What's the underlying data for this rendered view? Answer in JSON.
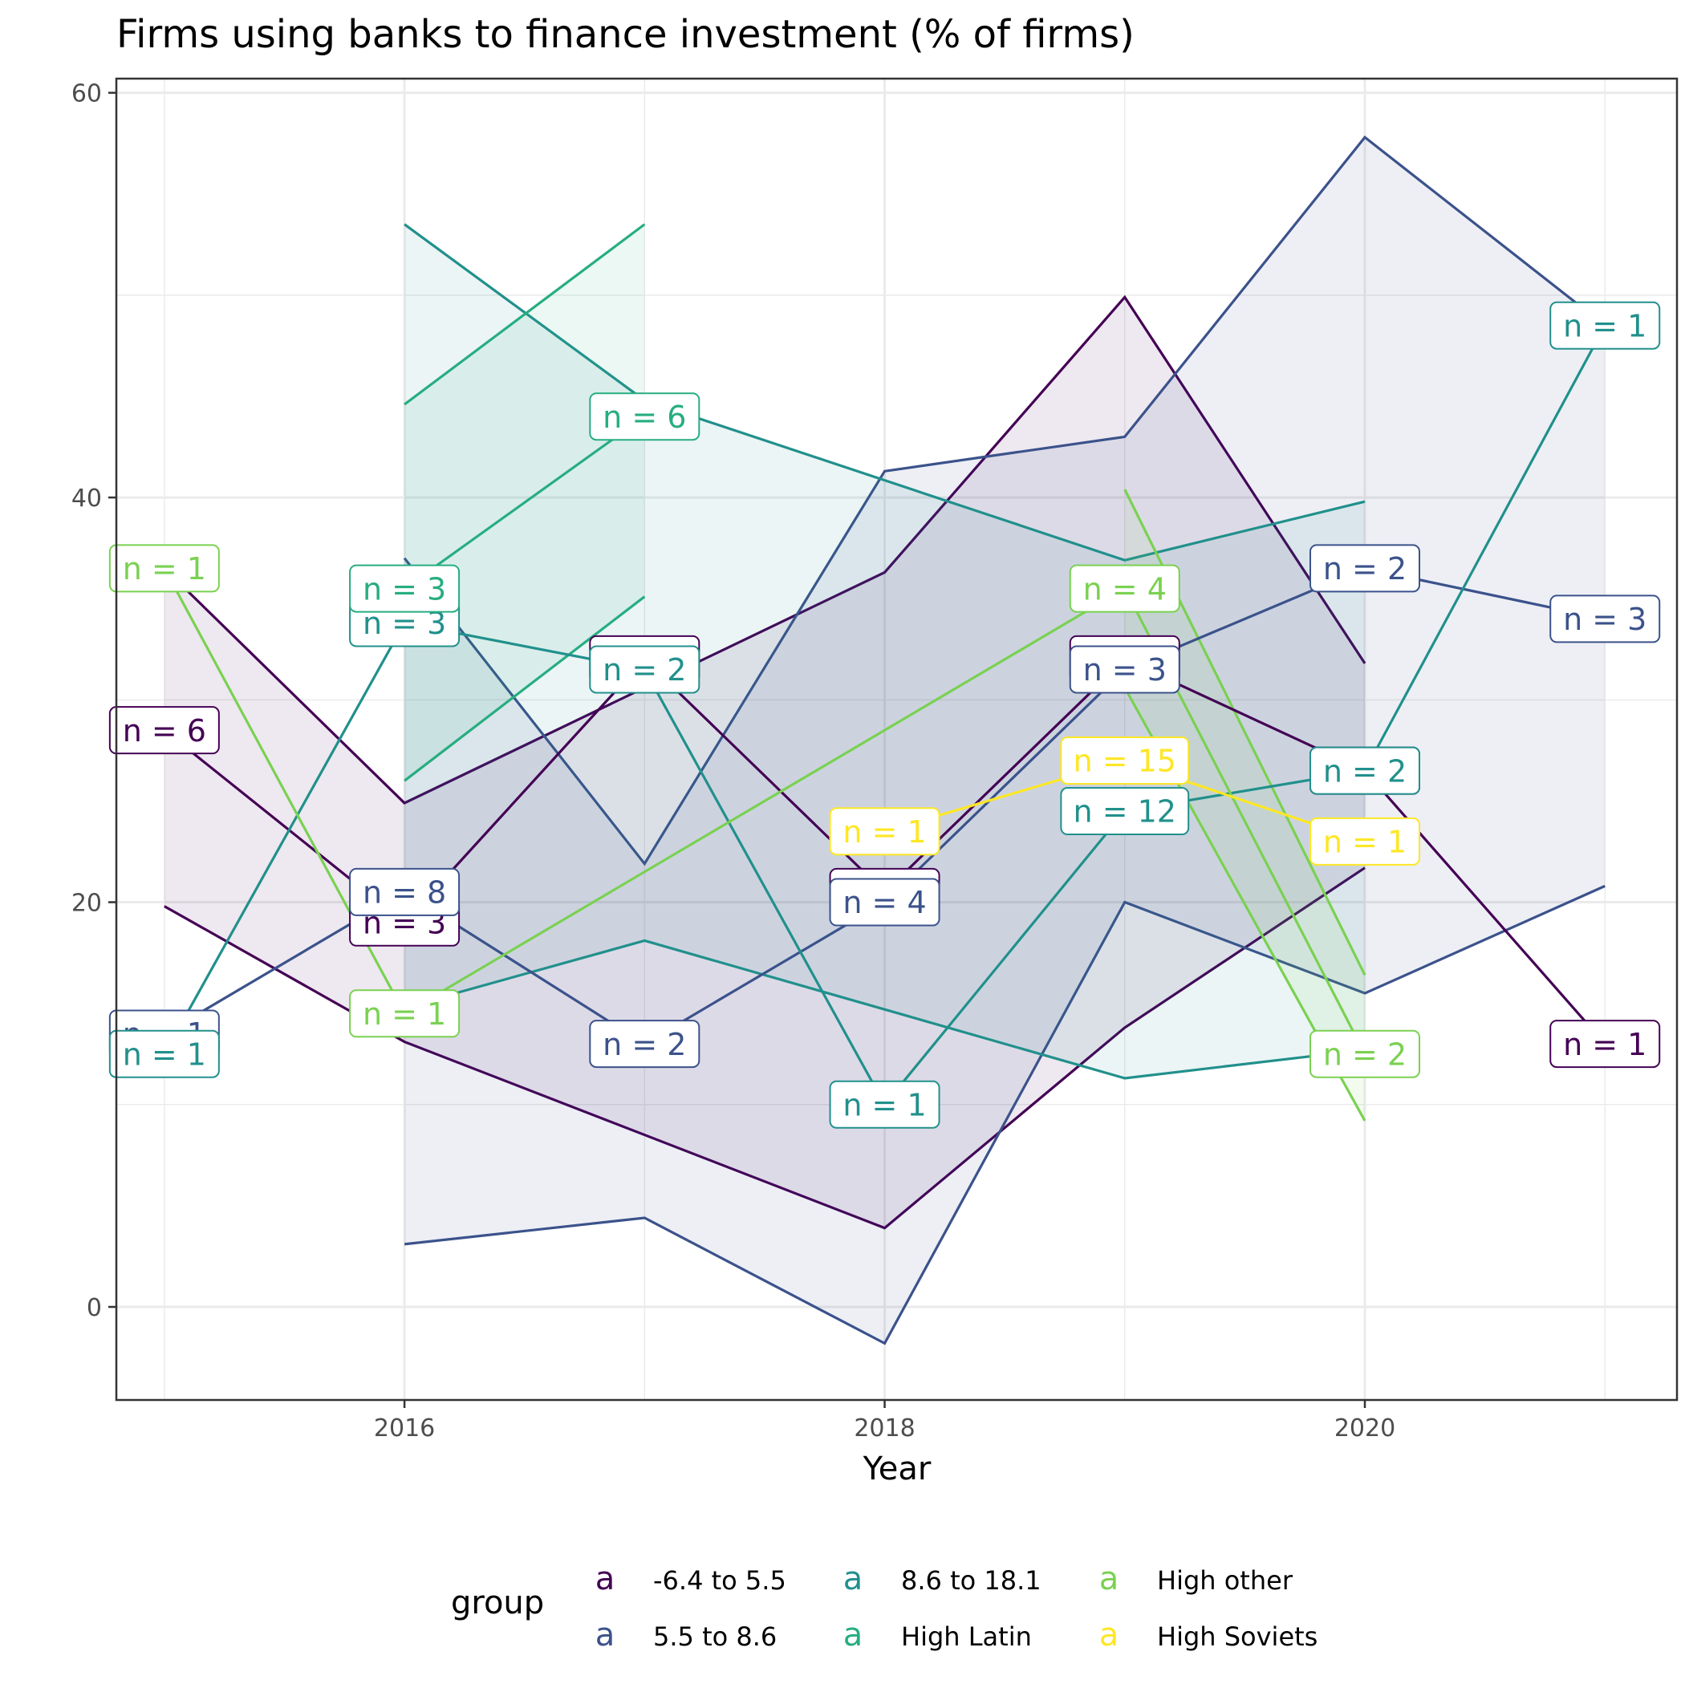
{
  "chart_data": {
    "type": "line",
    "title": "Firms using banks to finance investment (% of firms)",
    "xlabel": "Year",
    "ylabel": "",
    "xlim": [
      2014.8,
      2021.3
    ],
    "ylim": [
      -4.6,
      60.7
    ],
    "x_ticks": [
      2016,
      2018,
      2020
    ],
    "y_ticks": [
      0,
      20,
      40,
      60
    ],
    "grid": true,
    "legend": {
      "title": "group",
      "position": "bottom",
      "key_glyph": "a",
      "columns": 3
    },
    "series": [
      {
        "name": "-6.4 to 5.5",
        "color": "#440154",
        "mean": [
          [
            2015,
            28.5
          ],
          [
            2016,
            19.0
          ],
          [
            2017,
            32.0
          ],
          [
            2018,
            20.5
          ],
          [
            2019,
            32.0
          ],
          [
            2020,
            26.5
          ],
          [
            2021,
            13.0
          ]
        ],
        "ribbon": [
          [
            2015,
            36.5,
            19.8
          ],
          [
            2016,
            24.9,
            13.1
          ],
          [
            2018,
            36.3,
            3.9
          ],
          [
            2019,
            49.9,
            13.8
          ],
          [
            2020,
            31.8,
            21.7
          ]
        ],
        "labels": [
          "n = 6",
          "n = 3",
          "n = 2",
          "n = 4",
          "n = 3",
          "n = 2",
          "n = 1"
        ]
      },
      {
        "name": "5.5 to 8.6",
        "color": "#3b528b",
        "mean": [
          [
            2015,
            13.5
          ],
          [
            2016,
            20.5
          ],
          [
            2017,
            13.0
          ],
          [
            2018,
            20.0
          ],
          [
            2019,
            31.5
          ],
          [
            2020,
            36.5
          ],
          [
            2021,
            34.0
          ]
        ],
        "ribbon": [
          [
            2016,
            37.0,
            3.1
          ],
          [
            2017,
            21.9,
            4.4
          ],
          [
            2018,
            41.3,
            -1.8
          ],
          [
            2019,
            43.0,
            20.0
          ],
          [
            2020,
            57.8,
            15.5
          ],
          [
            2021,
            48.5,
            20.8
          ]
        ],
        "labels": [
          "n = 1",
          "n = 8",
          "n = 2",
          "n = 4",
          "n = 3",
          "n = 2",
          "n = 3"
        ]
      },
      {
        "name": "8.6 to 18.1",
        "color": "#21908c",
        "mean": [
          [
            2015,
            12.5
          ],
          [
            2016,
            33.8
          ],
          [
            2017,
            31.5
          ],
          [
            2018,
            10.0
          ],
          [
            2019,
            24.5
          ],
          [
            2020,
            26.5
          ],
          [
            2021,
            48.5
          ]
        ],
        "ribbon": [
          [
            2016,
            53.5,
            14.8
          ],
          [
            2017,
            44.8,
            18.1
          ],
          [
            2019,
            36.9,
            11.3
          ],
          [
            2020,
            39.8,
            12.7
          ]
        ],
        "labels": [
          "n = 1",
          "n = 3",
          "n = 2",
          "n = 1",
          "n = 12",
          "n = 2",
          "n = 1"
        ]
      },
      {
        "name": "High Latin",
        "color": "#27ad81",
        "mean": [
          [
            2016,
            35.5
          ],
          [
            2017,
            44.0
          ]
        ],
        "ribbon": [
          [
            2016,
            44.6,
            26.0
          ],
          [
            2017,
            53.5,
            35.1
          ]
        ],
        "labels": [
          "n = 3",
          "n = 6"
        ]
      },
      {
        "name": "High other",
        "color": "#7ad151",
        "mean": [
          [
            2015,
            36.5
          ],
          [
            2016,
            14.5
          ],
          [
            2019,
            35.5
          ],
          [
            2020,
            12.5
          ]
        ],
        "ribbon": [
          [
            2019,
            40.4,
            30.6
          ],
          [
            2020,
            16.4,
            9.2
          ]
        ],
        "labels": [
          "n = 1",
          "n = 1",
          "n = 4",
          "n = 2"
        ]
      },
      {
        "name": "High Soviets",
        "color": "#fde725",
        "mean": [
          [
            2018,
            23.5
          ],
          [
            2019,
            27.0
          ],
          [
            2020,
            23.0
          ]
        ],
        "ribbon": [],
        "labels": [
          "n = 1",
          "n = 15",
          "n = 1"
        ]
      }
    ]
  }
}
